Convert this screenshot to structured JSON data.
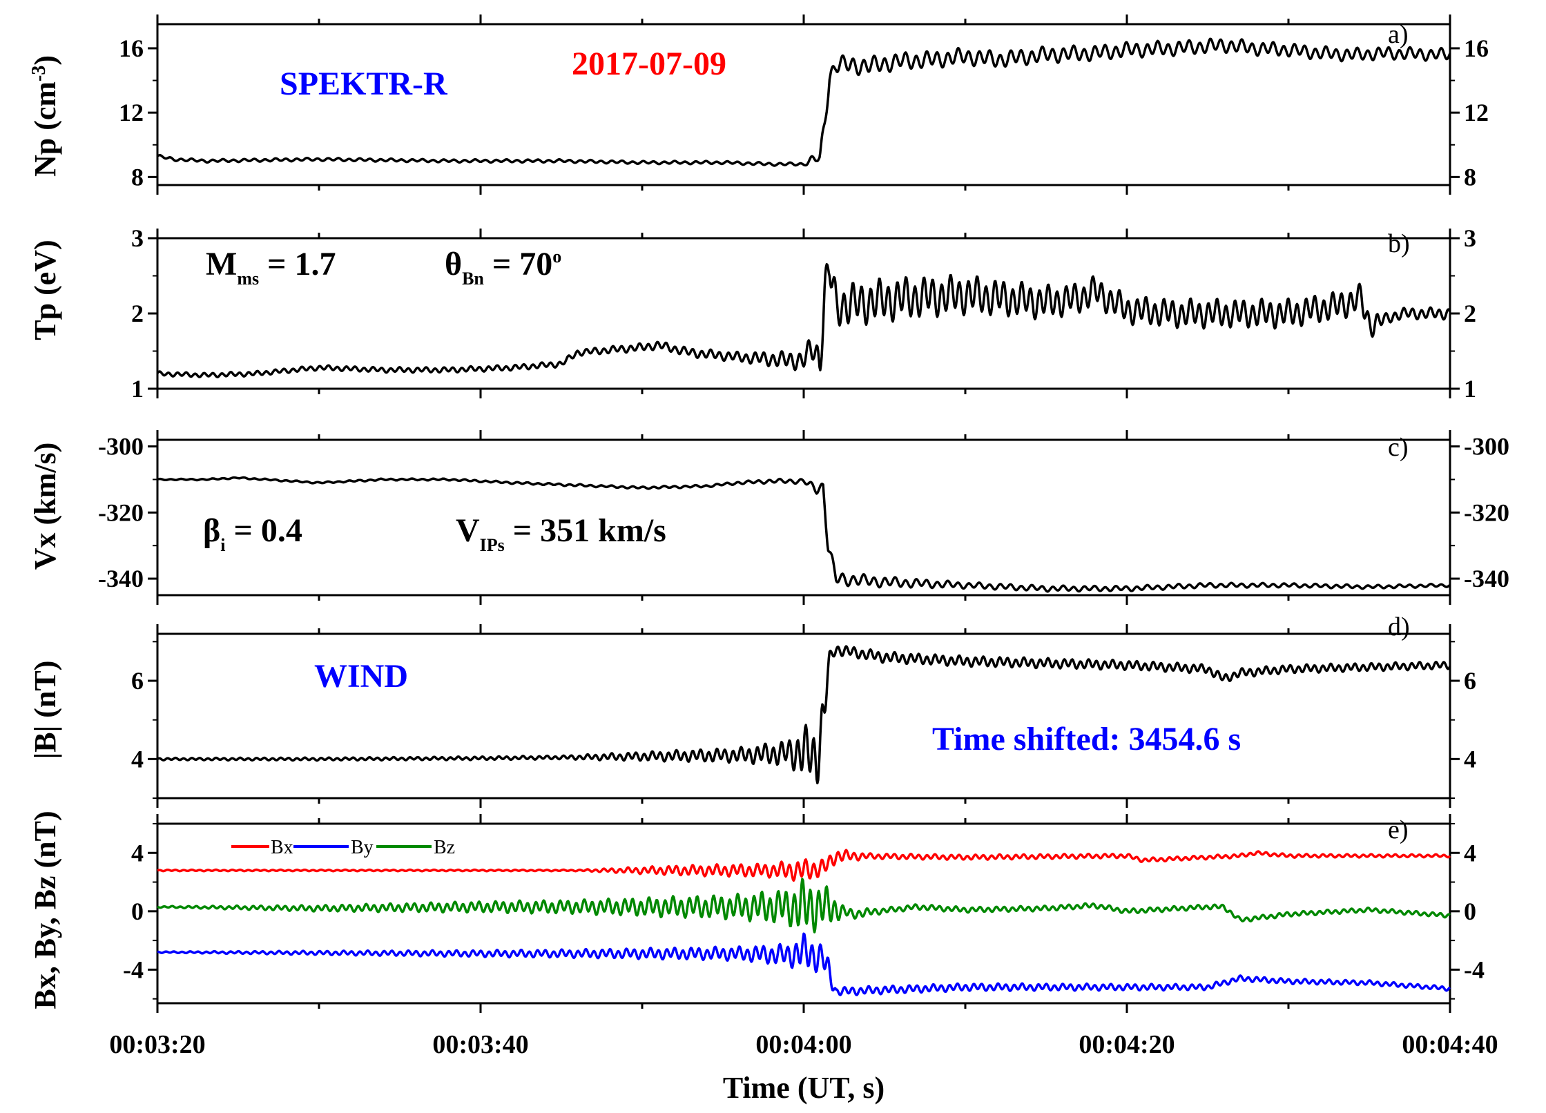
{
  "chart_data": [
    {
      "type": "line",
      "panel_label": "a)",
      "ylabel": "Np (cm",
      "ylabel_sup": "-3",
      "ylabel_close": ")",
      "ylim": [
        7.5,
        17.5
      ],
      "yticks": [
        8,
        12,
        16
      ],
      "yticks_right": [
        8,
        12,
        16
      ],
      "series": [
        {
          "name": "Np",
          "color": "#000000",
          "keypoints": [
            [
              0,
              9.3
            ],
            [
              1,
              9.1
            ],
            [
              3,
              9.0
            ],
            [
              10,
              9.1
            ],
            [
              18,
              9.0
            ],
            [
              25,
              9.0
            ],
            [
              30,
              8.9
            ],
            [
              35,
              8.9
            ],
            [
              38,
              8.8
            ],
            [
              40,
              8.8
            ],
            [
              40.8,
              9.2
            ],
            [
              41.0,
              9.0
            ],
            [
              41.3,
              11.5
            ],
            [
              41.6,
              14.2
            ],
            [
              42,
              15.0
            ],
            [
              44,
              14.9
            ],
            [
              46,
              15.2
            ],
            [
              48,
              15.3
            ],
            [
              50,
              15.5
            ],
            [
              52,
              15.3
            ],
            [
              55,
              15.6
            ],
            [
              58,
              15.7
            ],
            [
              60,
              15.9
            ],
            [
              63,
              16.0
            ],
            [
              66,
              16.2
            ],
            [
              68,
              16.0
            ],
            [
              70,
              15.9
            ],
            [
              72,
              15.7
            ],
            [
              74,
              15.6
            ],
            [
              76,
              15.7
            ],
            [
              80,
              15.6
            ]
          ],
          "noise": [
            [
              0,
              0.1
            ],
            [
              40,
              0.1
            ],
            [
              41.3,
              0.6
            ],
            [
              80,
              0.4
            ]
          ],
          "period": 0.65
        }
      ]
    },
    {
      "type": "line",
      "panel_label": "b)",
      "ylabel": "Tp (eV)",
      "ylim": [
        1,
        3
      ],
      "yticks": [
        1,
        2,
        3
      ],
      "yticks_right": [
        1,
        2,
        3
      ],
      "series": [
        {
          "name": "Tp",
          "color": "#000000",
          "keypoints": [
            [
              0,
              1.2
            ],
            [
              3,
              1.18
            ],
            [
              6,
              1.2
            ],
            [
              10,
              1.28
            ],
            [
              14,
              1.25
            ],
            [
              18,
              1.25
            ],
            [
              22,
              1.28
            ],
            [
              25,
              1.33
            ],
            [
              26,
              1.48
            ],
            [
              30,
              1.55
            ],
            [
              31,
              1.58
            ],
            [
              33,
              1.48
            ],
            [
              36,
              1.42
            ],
            [
              39,
              1.38
            ],
            [
              40,
              1.38
            ],
            [
              40.6,
              1.55
            ],
            [
              41,
              1.35
            ],
            [
              41.3,
              2.3
            ],
            [
              41.6,
              2.6
            ],
            [
              42,
              2.1
            ],
            [
              46,
              2.2
            ],
            [
              50,
              2.25
            ],
            [
              55,
              2.15
            ],
            [
              57,
              2.2
            ],
            [
              58,
              2.3
            ],
            [
              60,
              2.05
            ],
            [
              63,
              2.0
            ],
            [
              67,
              2.0
            ],
            [
              70,
              2.0
            ],
            [
              73,
              2.1
            ],
            [
              74.5,
              2.2
            ],
            [
              75,
              1.85
            ],
            [
              77,
              2.0
            ],
            [
              80,
              2.0
            ]
          ],
          "noise": [
            [
              0,
              0.03
            ],
            [
              24,
              0.04
            ],
            [
              36,
              0.07
            ],
            [
              40,
              0.14
            ],
            [
              41.2,
              0.3
            ],
            [
              46,
              0.3
            ],
            [
              60,
              0.2
            ],
            [
              75,
              0.2
            ],
            [
              76,
              0.08
            ],
            [
              80,
              0.08
            ]
          ],
          "period": 0.55
        }
      ]
    },
    {
      "type": "line",
      "panel_label": "c)",
      "ylabel": "Vx (km/s)",
      "ylim": [
        -345,
        -298
      ],
      "yticks": [
        -300,
        -320,
        -340
      ],
      "yticks_right": [
        -300,
        -320,
        -340
      ],
      "series": [
        {
          "name": "Vx",
          "color": "#000000",
          "keypoints": [
            [
              0,
              -310
            ],
            [
              3,
              -310
            ],
            [
              5,
              -309.5
            ],
            [
              10,
              -311
            ],
            [
              14,
              -310
            ],
            [
              18,
              -310
            ],
            [
              22,
              -311
            ],
            [
              30,
              -312.5
            ],
            [
              34,
              -312
            ],
            [
              36,
              -311
            ],
            [
              38,
              -310.5
            ],
            [
              40,
              -310.5
            ],
            [
              40.8,
              -313
            ],
            [
              41.2,
              -312
            ],
            [
              41.5,
              -330
            ],
            [
              42,
              -340
            ],
            [
              45,
              -341
            ],
            [
              50,
              -342
            ],
            [
              55,
              -343
            ],
            [
              60,
              -343
            ],
            [
              65,
              -342
            ],
            [
              70,
              -342
            ],
            [
              75,
              -342.5
            ],
            [
              80,
              -342
            ]
          ],
          "noise": [
            [
              0,
              0.2
            ],
            [
              35,
              0.4
            ],
            [
              40,
              0.8
            ],
            [
              41.6,
              2.2
            ],
            [
              50,
              1.0
            ],
            [
              80,
              0.5
            ]
          ],
          "period": 0.65
        }
      ]
    },
    {
      "type": "line",
      "panel_label": "d)",
      "ylabel": "|B| (nT)",
      "ylim": [
        3.0,
        7.2
      ],
      "yticks": [
        4,
        6
      ],
      "yticks_right": [
        4,
        6
      ],
      "series": [
        {
          "name": "|B|",
          "color": "#000000",
          "keypoints": [
            [
              0,
              4.0
            ],
            [
              10,
              4.0
            ],
            [
              20,
              4.02
            ],
            [
              27,
              4.05
            ],
            [
              32,
              4.08
            ],
            [
              36,
              4.1
            ],
            [
              39,
              4.15
            ],
            [
              40,
              4.2
            ],
            [
              40.8,
              4.0
            ],
            [
              41.2,
              5.0
            ],
            [
              41.6,
              6.6
            ],
            [
              42,
              6.8
            ],
            [
              45,
              6.6
            ],
            [
              50,
              6.5
            ],
            [
              55,
              6.45
            ],
            [
              60,
              6.4
            ],
            [
              65,
              6.3
            ],
            [
              66,
              6.05
            ],
            [
              67,
              6.2
            ],
            [
              70,
              6.3
            ],
            [
              75,
              6.35
            ],
            [
              80,
              6.4
            ]
          ],
          "noise": [
            [
              0,
              0.03
            ],
            [
              25,
              0.05
            ],
            [
              30,
              0.12
            ],
            [
              36,
              0.2
            ],
            [
              39,
              0.35
            ],
            [
              40,
              0.7
            ],
            [
              41.2,
              0.8
            ],
            [
              41.6,
              0.15
            ],
            [
              80,
              0.1
            ]
          ],
          "period": 0.5
        }
      ]
    },
    {
      "type": "line",
      "panel_label": "e)",
      "ylabel": "Bx, By, Bz (nT)",
      "ylim": [
        -6.3,
        6
      ],
      "yticks": [
        4,
        0,
        -4
      ],
      "yticks_right": [
        4,
        0,
        -4
      ],
      "legend_position": "top-left",
      "series": [
        {
          "name": "Bx",
          "color": "#ff0000",
          "keypoints": [
            [
              0,
              2.8
            ],
            [
              20,
              2.8
            ],
            [
              32,
              2.8
            ],
            [
              36,
              2.8
            ],
            [
              40,
              2.8
            ],
            [
              41.3,
              3.0
            ],
            [
              42,
              3.8
            ],
            [
              50,
              3.7
            ],
            [
              60,
              3.8
            ],
            [
              61,
              3.5
            ],
            [
              67,
              3.8
            ],
            [
              68,
              4.0
            ],
            [
              70,
              3.8
            ],
            [
              80,
              3.8
            ]
          ],
          "noise": [
            [
              0,
              0.05
            ],
            [
              26,
              0.05
            ],
            [
              32,
              0.35
            ],
            [
              38,
              0.5
            ],
            [
              40,
              0.8
            ],
            [
              41.3,
              0.6
            ],
            [
              44,
              0.2
            ],
            [
              80,
              0.1
            ]
          ],
          "period": 0.5
        },
        {
          "name": "By",
          "color": "#0000ff",
          "keypoints": [
            [
              0,
              -2.8
            ],
            [
              20,
              -2.9
            ],
            [
              26,
              -2.9
            ],
            [
              36,
              -2.9
            ],
            [
              39,
              -3.0
            ],
            [
              40,
              -2.8
            ],
            [
              41.2,
              -3.2
            ],
            [
              42,
              -5.5
            ],
            [
              50,
              -5.2
            ],
            [
              60,
              -5.2
            ],
            [
              65,
              -5.2
            ],
            [
              67,
              -4.6
            ],
            [
              70,
              -4.8
            ],
            [
              75,
              -4.9
            ],
            [
              80,
              -5.3
            ]
          ],
          "noise": [
            [
              0,
              0.05
            ],
            [
              26,
              0.3
            ],
            [
              36,
              0.5
            ],
            [
              39,
              0.8
            ],
            [
              40,
              1.3
            ],
            [
              41.5,
              1.0
            ],
            [
              42,
              0.3
            ],
            [
              80,
              0.15
            ]
          ],
          "period": 0.5
        },
        {
          "name": "Bz",
          "color": "#008800",
          "keypoints": [
            [
              0,
              0.3
            ],
            [
              10,
              0.2
            ],
            [
              20,
              0.3
            ],
            [
              26,
              0.3
            ],
            [
              36,
              0.3
            ],
            [
              40,
              0.3
            ],
            [
              41.5,
              0.3
            ],
            [
              43,
              -0.2
            ],
            [
              47,
              0.3
            ],
            [
              50,
              0.1
            ],
            [
              55,
              0.2
            ],
            [
              58,
              0.4
            ],
            [
              60,
              0.0
            ],
            [
              65,
              0.3
            ],
            [
              66,
              0.3
            ],
            [
              67,
              -0.6
            ],
            [
              70,
              -0.2
            ],
            [
              75,
              0.1
            ],
            [
              80,
              -0.3
            ]
          ],
          "noise": [
            [
              0,
              0.05
            ],
            [
              26,
              0.5
            ],
            [
              36,
              0.9
            ],
            [
              39,
              1.3
            ],
            [
              40,
              2.0
            ],
            [
              41.5,
              1.4
            ],
            [
              42.5,
              0.4
            ],
            [
              45,
              0.2
            ],
            [
              80,
              0.15
            ]
          ],
          "period": 0.5
        }
      ]
    }
  ],
  "shared": {
    "x_range_s": [
      0,
      80
    ],
    "x_ticks_s": [
      0,
      20,
      40,
      60,
      80
    ],
    "x_tick_labels": [
      "00:03:20",
      "00:03:40",
      "00:04:00",
      "00:04:20",
      "00:04:40"
    ],
    "xlabel": "Time (UT, s)"
  },
  "annotations": {
    "spacecraft1": "SPEKTR-R",
    "date": "2017-07-09",
    "mach_main": "M",
    "mach_sub": "ms",
    "mach_val": " = 1.7",
    "theta_main": "θ",
    "theta_sub": "Bn",
    "theta_val": " = 70",
    "theta_sup": "o",
    "beta_main": "β",
    "beta_sub": "i",
    "beta_val": " = 0.4",
    "vips_main": "V",
    "vips_sub": "IPs",
    "vips_val": " = 351 km/s",
    "spacecraft2": "WIND",
    "time_shift": "Time shifted:  3454.6 s"
  },
  "colors": {
    "blue": "#0000ff",
    "red": "#ff0000",
    "green": "#008800",
    "black": "#000000"
  }
}
